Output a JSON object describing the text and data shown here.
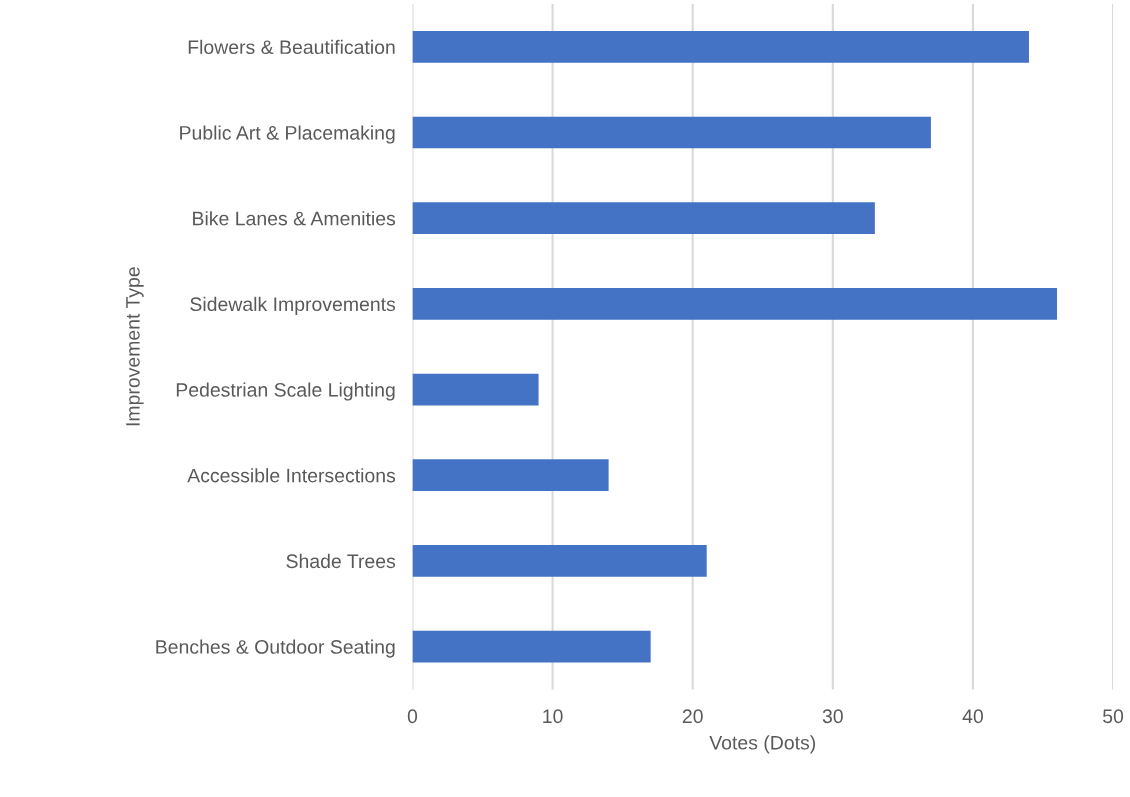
{
  "chart_data": {
    "type": "bar",
    "orientation": "horizontal",
    "xlabel": "Votes (Dots)",
    "ylabel": "Improvement Type",
    "categories": [
      "Flowers & Beautification",
      "Public Art & Placemaking",
      "Bike Lanes & Amenities",
      "Sidewalk Improvements",
      "Pedestrian Scale Lighting",
      "Accessible Intersections",
      "Shade Trees",
      "Benches & Outdoor Seating"
    ],
    "values": [
      44,
      37,
      33,
      46,
      9,
      14,
      21,
      17
    ],
    "color": "#4472c4",
    "xlim": [
      0,
      50
    ],
    "xticks": [
      0,
      10,
      20,
      30,
      40,
      50
    ],
    "grid": "x"
  }
}
